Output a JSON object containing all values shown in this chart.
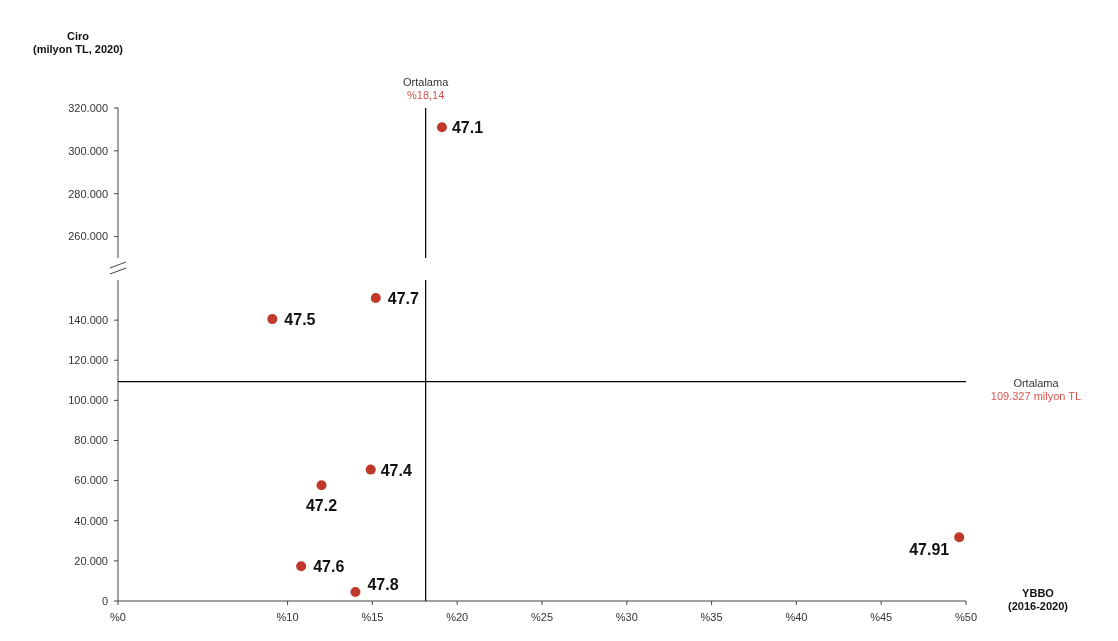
{
  "chart_data": [
    {
      "type": "scatter",
      "ylabel": "Ciro\n(milyon TL, 2020)",
      "tick_labels": "y",
      "x": [
        19.1
      ],
      "series": [
        {
          "color": "#c0392b",
          "values": [
            311
          ]
        }
      ],
      "marker": "circle",
      "xlim": [
        0,
        50
      ],
      "ylim": [
        250,
        320
      ],
      "yticks": [
        {
          "value": 260,
          "label": "260.000"
        },
        {
          "value": 280,
          "label": "280.000"
        },
        {
          "value": 300,
          "label": "300.000"
        },
        {
          "value": 320,
          "label": "320.000"
        }
      ],
      "ref_lines": [
        {
          "axis": "x",
          "value": 18.14,
          "label": "Ortalama\n%18,14",
          "color": "#000000"
        }
      ],
      "annotations": [
        {
          "text": "47.1",
          "x": 19.1,
          "y": 311
        }
      ]
    },
    {
      "type": "scatter",
      "xlabel": "YBBO\n(2016-2020)",
      "x": [
        12.0,
        14.9,
        9.1,
        10.8,
        15.2,
        14.0,
        49.6
      ],
      "series": [
        {
          "color": "#c0392b",
          "values": [
            57.7,
            65.5,
            140.5,
            17.3,
            151,
            4.5,
            31.8
          ]
        }
      ],
      "marker": "circle",
      "xlim": [
        0,
        50
      ],
      "xticks": [
        {
          "value": 0,
          "label": "%0"
        },
        {
          "value": 10,
          "label": "%10"
        },
        {
          "value": 15,
          "label": "%15"
        },
        {
          "value": 20,
          "label": "%20"
        },
        {
          "value": 25,
          "label": "%25"
        },
        {
          "value": 30,
          "label": "%30"
        },
        {
          "value": 35,
          "label": "%35"
        },
        {
          "value": 40,
          "label": "%40"
        },
        {
          "value": 45,
          "label": "%45"
        },
        {
          "value": 50,
          "label": "%50"
        }
      ],
      "ylim": [
        0,
        160
      ],
      "yticks": [
        0,
        {
          "value": 20,
          "label": "20.000"
        },
        {
          "value": 40,
          "label": "40.000"
        },
        {
          "value": 60,
          "label": "60.000"
        },
        {
          "value": 80,
          "label": "80.000"
        },
        {
          "value": 100,
          "label": "100.000"
        },
        {
          "value": 120,
          "label": "120.000"
        },
        {
          "value": 140,
          "label": "140.000"
        }
      ],
      "ref_lines": [
        {
          "axis": "x",
          "value": 18.14,
          "color": "#000000"
        },
        {
          "axis": "y",
          "value": 109.327,
          "label": "Ortalama\n109.327 milyon TL",
          "color": "#000000"
        }
      ],
      "annotations": [
        {
          "text": "47.2",
          "x": 12.0,
          "y": 57.7
        },
        {
          "text": "47.4",
          "x": 14.9,
          "y": 65.5
        },
        {
          "text": "47.5",
          "x": 9.1,
          "y": 140.5
        },
        {
          "text": "47.6",
          "x": 10.8,
          "y": 17.3
        },
        {
          "text": "47.7",
          "x": 15.2,
          "y": 151
        },
        {
          "text": "47.8",
          "x": 14.0,
          "y": 4.5
        },
        {
          "text": "47.91",
          "x": 49.6,
          "y": 31.8
        }
      ]
    }
  ]
}
